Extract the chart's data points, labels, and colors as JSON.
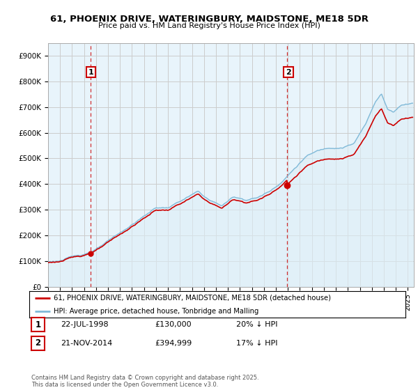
{
  "title1": "61, PHOENIX DRIVE, WATERINGBURY, MAIDSTONE, ME18 5DR",
  "title2": "Price paid vs. HM Land Registry's House Price Index (HPI)",
  "ylim": [
    0,
    950000
  ],
  "yticks": [
    0,
    100000,
    200000,
    300000,
    400000,
    500000,
    600000,
    700000,
    800000,
    900000
  ],
  "ytick_labels": [
    "£0",
    "£100K",
    "£200K",
    "£300K",
    "£400K",
    "£500K",
    "£600K",
    "£700K",
    "£800K",
    "£900K"
  ],
  "purchase1_date": 1998.56,
  "purchase1_price": 130000,
  "purchase2_date": 2014.9,
  "purchase2_price": 394999,
  "hpi_color": "#7fb9d8",
  "hpi_fill_color": "#ddeef6",
  "price_color": "#cc0000",
  "vline_color": "#cc0000",
  "background_color": "#ffffff",
  "chart_bg_color": "#e8f4fb",
  "grid_color": "#cccccc",
  "legend_label1": "61, PHOENIX DRIVE, WATERINGBURY, MAIDSTONE, ME18 5DR (detached house)",
  "legend_label2": "HPI: Average price, detached house, Tonbridge and Malling",
  "annotation1_label": "1",
  "annotation2_label": "2",
  "footnote": "Contains HM Land Registry data © Crown copyright and database right 2025.\nThis data is licensed under the Open Government Licence v3.0.",
  "table_row1": [
    "1",
    "22-JUL-1998",
    "£130,000",
    "20% ↓ HPI"
  ],
  "table_row2": [
    "2",
    "21-NOV-2014",
    "£394,999",
    "17% ↓ HPI"
  ],
  "xstart": 1995,
  "xend": 2025.5
}
